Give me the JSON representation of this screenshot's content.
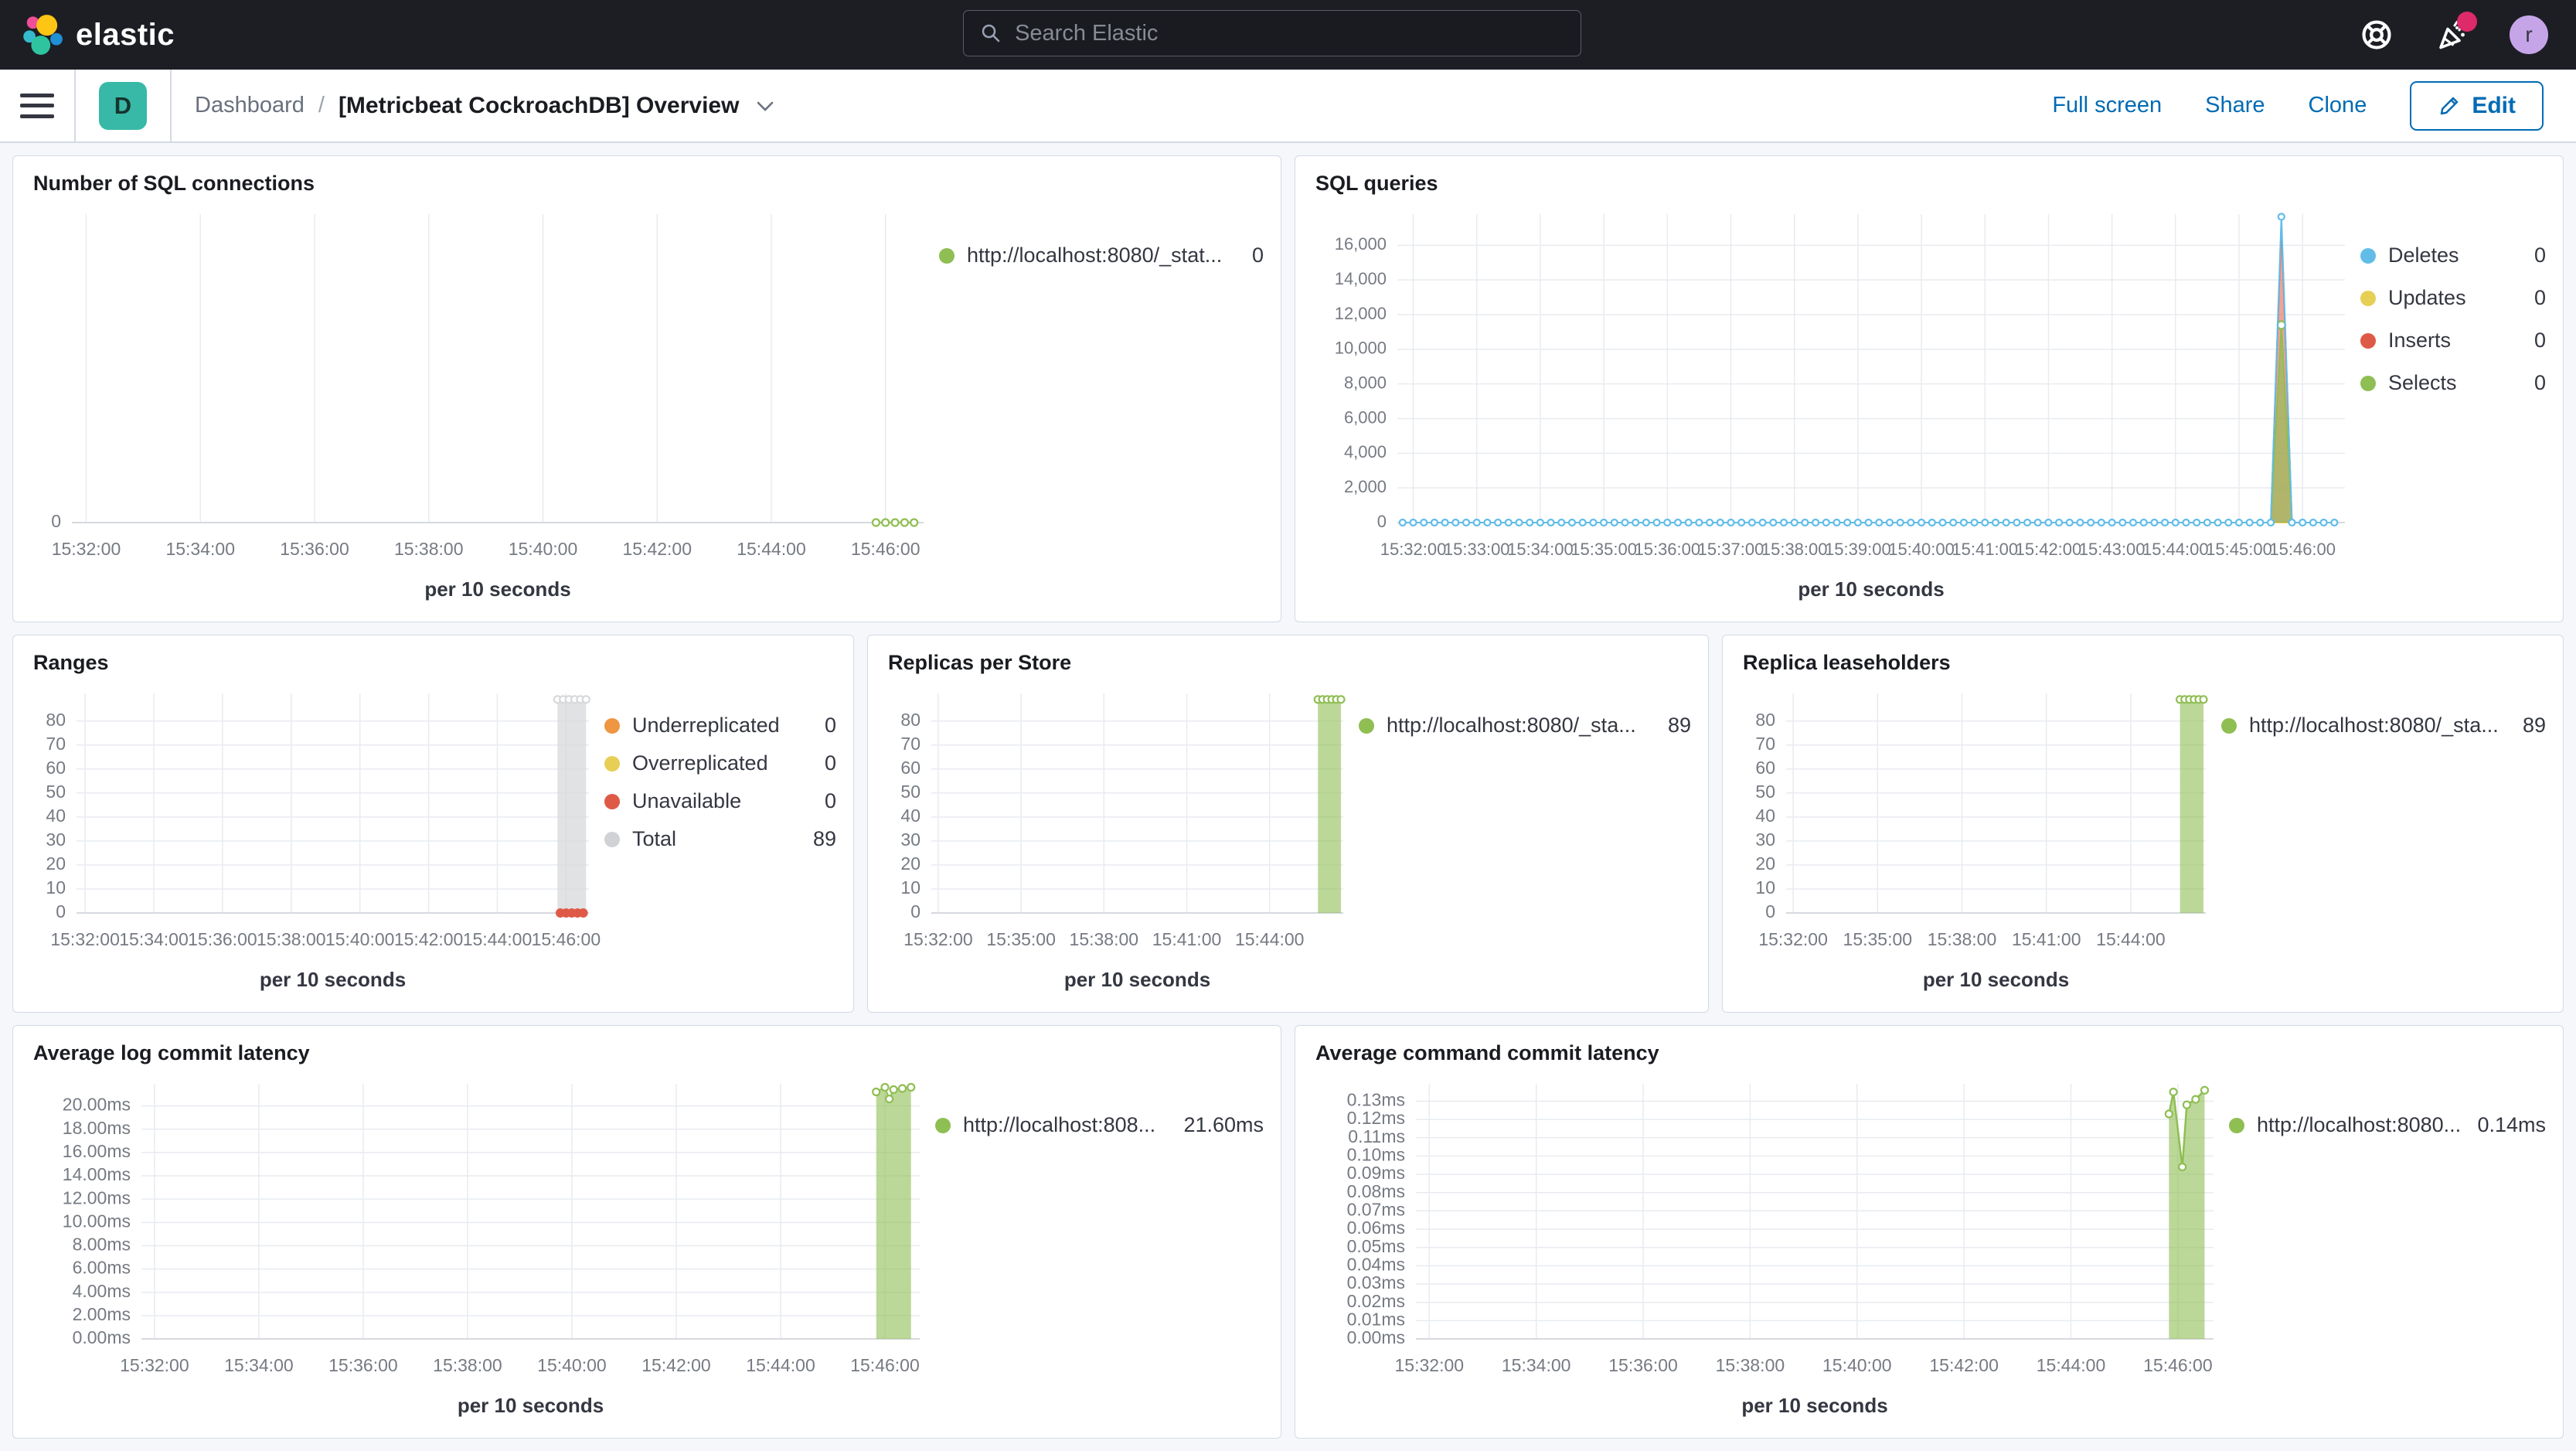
{
  "topbar": {
    "logo_text": "elastic",
    "search_placeholder": "Search Elastic",
    "avatar_initial": "r"
  },
  "navbar": {
    "app_badge": "D",
    "breadcrumb_root": "Dashboard",
    "breadcrumb_sep": "/",
    "title": "[Metricbeat CockroachDB] Overview",
    "action_fullscreen": "Full screen",
    "action_share": "Share",
    "action_clone": "Clone",
    "edit_label": "Edit"
  },
  "colors": {
    "accent_blue": "#006bb4",
    "badge_teal": "#38b9a7",
    "series_green": "#8fbe53",
    "series_blue": "#61bde8",
    "series_yellow": "#e7cf56",
    "series_red": "#df5a46",
    "series_orange": "#ee9642",
    "series_gray": "#d0d2d5"
  },
  "panels": [
    {
      "title": "Number of SQL connections",
      "legend": [
        {
          "label": "http://localhost:8080/_stat...",
          "value": "0",
          "color": "#8fbe53"
        }
      ],
      "chart": {
        "type": "line",
        "margin_left": 62,
        "ylim": [
          0,
          1
        ],
        "yticks": [
          {
            "v": 0,
            "label": "0"
          }
        ],
        "xdomain": [
          "15:31:45",
          "15:46:40"
        ],
        "xticks": [
          "15:32:00",
          "15:34:00",
          "15:36:00",
          "15:38:00",
          "15:40:00",
          "15:42:00",
          "15:44:00",
          "15:46:00"
        ],
        "xlabel": "per 10 seconds",
        "series": [
          {
            "name": "http://localhost:8080/_stat...",
            "color": "#8fbe53",
            "type": "line",
            "line_width": 2,
            "markers": "all",
            "marker_r": 4.5,
            "flat": {
              "from": "15:45:50",
              "to": "15:46:30",
              "step": 10,
              "v": 0
            }
          }
        ]
      }
    },
    {
      "title": "SQL queries",
      "legend": [
        {
          "label": "Deletes",
          "value": "0",
          "color": "#61bde8"
        },
        {
          "label": "Updates",
          "value": "0",
          "color": "#e7cf56"
        },
        {
          "label": "Inserts",
          "value": "0",
          "color": "#df5a46"
        },
        {
          "label": "Selects",
          "value": "0",
          "color": "#8fbe53"
        }
      ],
      "chart": {
        "type": "line",
        "margin_left": 118,
        "tick_font": 22,
        "ylim": [
          0,
          17800
        ],
        "yticks": [
          {
            "v": 0,
            "label": "0"
          },
          {
            "v": 2000,
            "label": "2,000"
          },
          {
            "v": 4000,
            "label": "4,000"
          },
          {
            "v": 6000,
            "label": "6,000"
          },
          {
            "v": 8000,
            "label": "8,000"
          },
          {
            "v": 10000,
            "label": "10,000"
          },
          {
            "v": 12000,
            "label": "12,000"
          },
          {
            "v": 14000,
            "label": "14,000"
          },
          {
            "v": 16000,
            "label": "16,000"
          }
        ],
        "xdomain": [
          "15:31:45",
          "15:46:40"
        ],
        "xticks": [
          "15:32:00",
          "15:33:00",
          "15:34:00",
          "15:35:00",
          "15:36:00",
          "15:37:00",
          "15:38:00",
          "15:39:00",
          "15:40:00",
          "15:41:00",
          "15:42:00",
          "15:43:00",
          "15:44:00",
          "15:45:00",
          "15:46:00"
        ],
        "xlabel": "per 10 seconds",
        "series": [
          {
            "name": "Updates",
            "color": "#e7cf56",
            "type": "line",
            "line_width": 2,
            "flat": {
              "from": "15:31:50",
              "to": "15:46:30",
              "step": 10,
              "v": 0
            }
          },
          {
            "name": "Inserts",
            "color": "#df5a46",
            "type": "area",
            "fill_opacity": 0.55,
            "line_width": 2,
            "flat": {
              "from": "15:31:50",
              "to": "15:46:30",
              "step": 10,
              "v": 0
            },
            "points": [
              [
                "15:45:40",
                17250
              ]
            ]
          },
          {
            "name": "Selects",
            "color": "#8fbe53",
            "type": "area",
            "fill_opacity": 0.65,
            "line_width": 2,
            "flat": {
              "from": "15:31:50",
              "to": "15:46:30",
              "step": 10,
              "v": 0
            },
            "points": [
              [
                "15:45:40",
                11400
              ]
            ],
            "marker_at": [
              "15:45:40"
            ],
            "marker_r": 5
          },
          {
            "name": "Deletes",
            "color": "#61bde8",
            "type": "line",
            "line_width": 2,
            "flat": {
              "from": "15:31:50",
              "to": "15:46:30",
              "step": 10,
              "v": 0
            },
            "points": [
              [
                "15:45:40",
                17650
              ]
            ],
            "markers": "all",
            "marker_r": 4
          }
        ]
      }
    },
    {
      "title": "Ranges",
      "legend": [
        {
          "label": "Underreplicated",
          "value": "0",
          "color": "#ee9642"
        },
        {
          "label": "Overreplicated",
          "value": "0",
          "color": "#e7cf56"
        },
        {
          "label": "Unavailable",
          "value": "0",
          "color": "#df5a46"
        },
        {
          "label": "Total",
          "value": "89",
          "color": "#d0d2d5"
        }
      ],
      "chart": {
        "type": "area",
        "margin_left": 68,
        "ylim": [
          0,
          91.5
        ],
        "yticks": [
          {
            "v": 0,
            "label": "0"
          },
          {
            "v": 10,
            "label": "10"
          },
          {
            "v": 20,
            "label": "20"
          },
          {
            "v": 30,
            "label": "30"
          },
          {
            "v": 40,
            "label": "40"
          },
          {
            "v": 50,
            "label": "50"
          },
          {
            "v": 60,
            "label": "60"
          },
          {
            "v": 70,
            "label": "70"
          },
          {
            "v": 80,
            "label": "80"
          }
        ],
        "xdomain": [
          "15:31:45",
          "15:46:40"
        ],
        "xticks": [
          "15:32:00",
          "15:34:00",
          "15:36:00",
          "15:38:00",
          "15:40:00",
          "15:42:00",
          "15:44:00",
          "15:46:00"
        ],
        "xlabel": "per 10 seconds",
        "series": [
          {
            "name": "Total",
            "color": "#d7d8da",
            "type": "area",
            "fill_opacity": 0.75,
            "line_width": 1.5,
            "flat": {
              "from": "15:45:45",
              "to": "15:46:35",
              "step": 10,
              "v": 89
            },
            "markers": "all",
            "marker_r": 4.5
          },
          {
            "name": "Unavailable",
            "color": "#df5a46",
            "type": "dots",
            "marker": "dot",
            "markers": "all",
            "marker_r": 6,
            "flat": {
              "from": "15:45:50",
              "to": "15:46:30",
              "step": 10,
              "v": 0
            }
          }
        ]
      }
    },
    {
      "title": "Replicas per Store",
      "legend": [
        {
          "label": "http://localhost:8080/_sta...",
          "value": "89",
          "color": "#8fbe53"
        }
      ],
      "chart": {
        "type": "area",
        "margin_left": 68,
        "ylim": [
          0,
          91.5
        ],
        "yticks": [
          {
            "v": 0,
            "label": "0"
          },
          {
            "v": 10,
            "label": "10"
          },
          {
            "v": 20,
            "label": "20"
          },
          {
            "v": 30,
            "label": "30"
          },
          {
            "v": 40,
            "label": "40"
          },
          {
            "v": 50,
            "label": "50"
          },
          {
            "v": 60,
            "label": "60"
          },
          {
            "v": 70,
            "label": "70"
          },
          {
            "v": 80,
            "label": "80"
          }
        ],
        "xdomain": [
          "15:31:45",
          "15:46:40"
        ],
        "xticks": [
          "15:32:00",
          "15:35:00",
          "15:38:00",
          "15:41:00",
          "15:44:00"
        ],
        "xlabel": "per 10 seconds",
        "series": [
          {
            "name": "http://localhost:8080/_sta...",
            "color": "#8fbe53",
            "type": "area",
            "fill_opacity": 0.6,
            "line_width": 2,
            "flat": {
              "from": "15:45:45",
              "to": "15:46:35",
              "step": 10,
              "v": 89
            },
            "markers": "all",
            "marker_r": 4.5
          }
        ]
      }
    },
    {
      "title": "Replica leaseholders",
      "legend": [
        {
          "label": "http://localhost:8080/_sta...",
          "value": "89",
          "color": "#8fbe53"
        }
      ],
      "chart": {
        "type": "area",
        "margin_left": 68,
        "ylim": [
          0,
          91.5
        ],
        "yticks": [
          {
            "v": 0,
            "label": "0"
          },
          {
            "v": 10,
            "label": "10"
          },
          {
            "v": 20,
            "label": "20"
          },
          {
            "v": 30,
            "label": "30"
          },
          {
            "v": 40,
            "label": "40"
          },
          {
            "v": 50,
            "label": "50"
          },
          {
            "v": 60,
            "label": "60"
          },
          {
            "v": 70,
            "label": "70"
          },
          {
            "v": 80,
            "label": "80"
          }
        ],
        "xdomain": [
          "15:31:45",
          "15:46:40"
        ],
        "xticks": [
          "15:32:00",
          "15:35:00",
          "15:38:00",
          "15:41:00",
          "15:44:00"
        ],
        "xlabel": "per 10 seconds",
        "series": [
          {
            "name": "http://localhost:8080/_sta...",
            "color": "#8fbe53",
            "type": "area",
            "fill_opacity": 0.6,
            "line_width": 2,
            "flat": {
              "from": "15:45:45",
              "to": "15:46:35",
              "step": 10,
              "v": 89
            },
            "markers": "all",
            "marker_r": 4.5
          }
        ]
      }
    },
    {
      "title": "Average log commit latency",
      "legend": [
        {
          "label": "http://localhost:808...",
          "value": "21.60ms",
          "color": "#8fbe53"
        }
      ],
      "chart": {
        "type": "area",
        "margin_left": 152,
        "ylim": [
          0,
          21.9
        ],
        "yticks": [
          {
            "v": 0,
            "label": "0.00ms"
          },
          {
            "v": 2,
            "label": "2.00ms"
          },
          {
            "v": 4,
            "label": "4.00ms"
          },
          {
            "v": 6,
            "label": "6.00ms"
          },
          {
            "v": 8,
            "label": "8.00ms"
          },
          {
            "v": 10,
            "label": "10.00ms"
          },
          {
            "v": 12,
            "label": "12.00ms"
          },
          {
            "v": 14,
            "label": "14.00ms"
          },
          {
            "v": 16,
            "label": "16.00ms"
          },
          {
            "v": 18,
            "label": "18.00ms"
          },
          {
            "v": 20,
            "label": "20.00ms"
          }
        ],
        "xdomain": [
          "15:31:45",
          "15:46:40"
        ],
        "xticks": [
          "15:32:00",
          "15:34:00",
          "15:36:00",
          "15:38:00",
          "15:40:00",
          "15:42:00",
          "15:44:00",
          "15:46:00"
        ],
        "xlabel": "per 10 seconds",
        "series": [
          {
            "name": "http://localhost:808...",
            "color": "#8fbe53",
            "type": "area",
            "fill_opacity": 0.6,
            "line_width": 2,
            "points": [
              [
                "15:45:50",
                21.2
              ],
              [
                "15:46:00",
                21.6
              ],
              [
                "15:46:05",
                20.6
              ],
              [
                "15:46:10",
                21.4
              ],
              [
                "15:46:20",
                21.5
              ],
              [
                "15:46:30",
                21.6
              ]
            ],
            "markers": "all",
            "marker_r": 4.5
          }
        ]
      }
    },
    {
      "title": "Average command commit latency",
      "legend": [
        {
          "label": "http://localhost:8080...",
          "value": "0.14ms",
          "color": "#8fbe53"
        }
      ],
      "chart": {
        "type": "area",
        "margin_left": 142,
        "ylim": [
          0,
          0.1395
        ],
        "yticks": [
          {
            "v": 0.0,
            "label": "0.00ms"
          },
          {
            "v": 0.01,
            "label": "0.01ms"
          },
          {
            "v": 0.02,
            "label": "0.02ms"
          },
          {
            "v": 0.03,
            "label": "0.03ms"
          },
          {
            "v": 0.04,
            "label": "0.04ms"
          },
          {
            "v": 0.05,
            "label": "0.05ms"
          },
          {
            "v": 0.06,
            "label": "0.06ms"
          },
          {
            "v": 0.07,
            "label": "0.07ms"
          },
          {
            "v": 0.08,
            "label": "0.08ms"
          },
          {
            "v": 0.09,
            "label": "0.09ms"
          },
          {
            "v": 0.1,
            "label": "0.10ms"
          },
          {
            "v": 0.11,
            "label": "0.11ms"
          },
          {
            "v": 0.12,
            "label": "0.12ms"
          },
          {
            "v": 0.13,
            "label": "0.13ms"
          }
        ],
        "xdomain": [
          "15:31:45",
          "15:46:40"
        ],
        "xticks": [
          "15:32:00",
          "15:34:00",
          "15:36:00",
          "15:38:00",
          "15:40:00",
          "15:42:00",
          "15:44:00",
          "15:46:00"
        ],
        "xlabel": "per 10 seconds",
        "series": [
          {
            "name": "http://localhost:8080...",
            "color": "#8fbe53",
            "type": "area",
            "fill_opacity": 0.6,
            "line_width": 2.5,
            "points": [
              [
                "15:45:50",
                0.123
              ],
              [
                "15:45:55",
                0.135
              ],
              [
                "15:46:05",
                0.094
              ],
              [
                "15:46:10",
                0.128
              ],
              [
                "15:46:20",
                0.131
              ],
              [
                "15:46:30",
                0.136
              ]
            ],
            "markers": "all",
            "marker_r": 4.5
          }
        ]
      }
    }
  ]
}
